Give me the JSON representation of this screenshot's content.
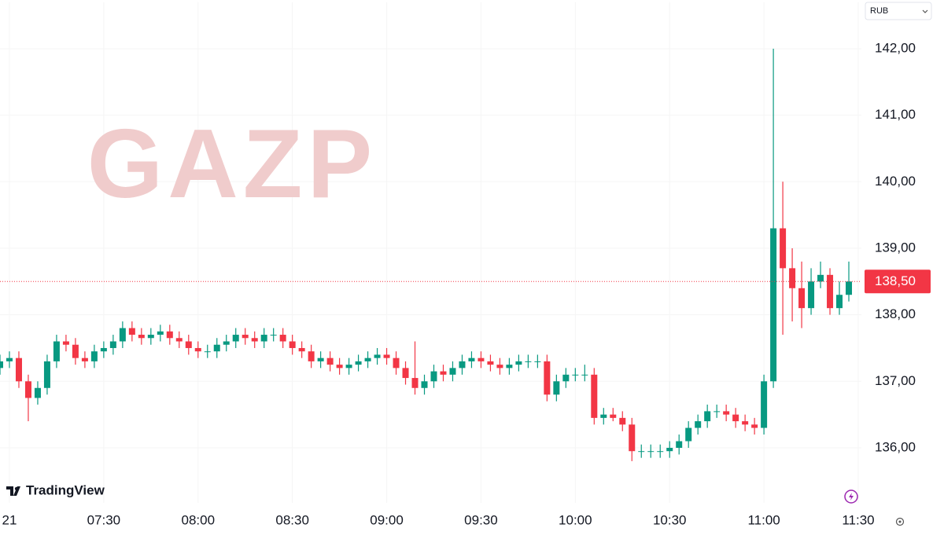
{
  "chart_data": {
    "type": "candlestick",
    "watermark": "GAZP",
    "currency": "RUB",
    "x": [
      417,
      420,
      423,
      426,
      429,
      432,
      435,
      438,
      441,
      444,
      447,
      450,
      453,
      456,
      459,
      462,
      465,
      468,
      471,
      474,
      477,
      480,
      483,
      486,
      489,
      492,
      495,
      498,
      501,
      504,
      507,
      510,
      513,
      516,
      519,
      522,
      525,
      528,
      531,
      534,
      537,
      540,
      543,
      546,
      549,
      552,
      555,
      558,
      561,
      564,
      567,
      570,
      573,
      576,
      579,
      582,
      585,
      588,
      591,
      594,
      597,
      600,
      603,
      606,
      609,
      612,
      615,
      618,
      621,
      624,
      627,
      630,
      633,
      636,
      639,
      642,
      645,
      648,
      651,
      654,
      657,
      660,
      663,
      666,
      669,
      672,
      675,
      678,
      681,
      684,
      687
    ],
    "open": [
      137.2,
      137.3,
      137.35,
      137.0,
      136.75,
      136.9,
      137.3,
      137.6,
      137.55,
      137.35,
      137.3,
      137.45,
      137.5,
      137.6,
      137.8,
      137.7,
      137.65,
      137.7,
      137.75,
      137.65,
      137.6,
      137.5,
      137.45,
      137.45,
      137.55,
      137.6,
      137.7,
      137.65,
      137.6,
      137.7,
      137.7,
      137.6,
      137.5,
      137.45,
      137.3,
      137.35,
      137.25,
      137.2,
      137.25,
      137.3,
      137.35,
      137.4,
      137.35,
      137.2,
      137.05,
      136.9,
      137.0,
      137.15,
      137.1,
      137.2,
      137.3,
      137.35,
      137.3,
      137.25,
      137.2,
      137.25,
      137.3,
      137.3,
      137.3,
      136.8,
      137.0,
      137.1,
      137.1,
      137.1,
      136.45,
      136.5,
      136.45,
      136.35,
      135.95,
      135.95,
      135.95,
      135.95,
      136.0,
      136.1,
      136.3,
      136.4,
      136.55,
      136.55,
      136.5,
      136.4,
      136.35,
      136.3,
      137.0,
      139.3,
      138.7,
      138.4,
      138.1,
      138.5,
      138.6,
      138.1,
      138.3
    ],
    "high": [
      137.4,
      137.45,
      137.45,
      137.1,
      137.0,
      137.4,
      137.7,
      137.7,
      137.65,
      137.45,
      137.55,
      137.6,
      137.7,
      137.9,
      137.9,
      137.8,
      137.8,
      137.85,
      137.85,
      137.75,
      137.7,
      137.6,
      137.55,
      137.65,
      137.7,
      137.8,
      137.8,
      137.75,
      137.8,
      137.8,
      137.8,
      137.7,
      137.6,
      137.55,
      137.45,
      137.45,
      137.35,
      137.35,
      137.4,
      137.45,
      137.5,
      137.5,
      137.45,
      137.3,
      137.6,
      137.1,
      137.25,
      137.25,
      137.3,
      137.4,
      137.45,
      137.45,
      137.4,
      137.35,
      137.35,
      137.4,
      137.4,
      137.4,
      137.4,
      137.1,
      137.2,
      137.2,
      137.25,
      137.2,
      136.6,
      136.6,
      136.55,
      136.45,
      136.05,
      136.05,
      136.05,
      136.1,
      136.2,
      136.4,
      136.5,
      136.65,
      136.65,
      136.65,
      136.6,
      136.5,
      136.45,
      137.1,
      142.0,
      140.0,
      139.0,
      138.8,
      138.7,
      138.8,
      138.7,
      138.5,
      138.8
    ],
    "low": [
      137.1,
      137.2,
      136.9,
      136.4,
      136.65,
      136.8,
      137.2,
      137.45,
      137.25,
      137.2,
      137.2,
      137.35,
      137.4,
      137.5,
      137.6,
      137.55,
      137.55,
      137.6,
      137.55,
      137.5,
      137.4,
      137.35,
      137.35,
      137.35,
      137.45,
      137.5,
      137.55,
      137.5,
      137.5,
      137.6,
      137.5,
      137.4,
      137.35,
      137.2,
      137.2,
      137.15,
      137.1,
      137.1,
      137.15,
      137.2,
      137.25,
      137.25,
      137.1,
      136.95,
      136.8,
      136.8,
      136.9,
      137.0,
      137.0,
      137.1,
      137.2,
      137.2,
      137.15,
      137.1,
      137.1,
      137.15,
      137.2,
      137.2,
      136.7,
      136.7,
      136.9,
      137.0,
      137.0,
      136.35,
      136.35,
      136.4,
      136.25,
      135.8,
      135.85,
      135.85,
      135.85,
      135.85,
      135.9,
      136.0,
      136.2,
      136.3,
      136.45,
      136.4,
      136.3,
      136.25,
      136.2,
      136.2,
      136.9,
      137.7,
      137.9,
      137.8,
      138.0,
      138.4,
      138.0,
      138.0,
      138.2
    ],
    "close": [
      137.3,
      137.35,
      137.0,
      136.75,
      136.9,
      137.3,
      137.6,
      137.55,
      137.35,
      137.3,
      137.45,
      137.5,
      137.6,
      137.8,
      137.7,
      137.65,
      137.7,
      137.75,
      137.65,
      137.6,
      137.5,
      137.45,
      137.45,
      137.55,
      137.6,
      137.7,
      137.65,
      137.6,
      137.7,
      137.7,
      137.6,
      137.5,
      137.45,
      137.3,
      137.35,
      137.25,
      137.2,
      137.25,
      137.3,
      137.35,
      137.4,
      137.35,
      137.2,
      137.05,
      136.9,
      137.0,
      137.15,
      137.1,
      137.2,
      137.3,
      137.35,
      137.3,
      137.25,
      137.2,
      137.25,
      137.3,
      137.3,
      137.3,
      136.8,
      137.0,
      137.1,
      137.1,
      137.1,
      136.45,
      136.5,
      136.45,
      136.35,
      135.95,
      135.95,
      135.95,
      135.95,
      136.0,
      136.1,
      136.3,
      136.4,
      136.55,
      136.55,
      136.5,
      136.4,
      136.35,
      136.3,
      137.0,
      139.3,
      138.7,
      138.4,
      138.1,
      138.5,
      138.6,
      138.1,
      138.3,
      138.5
    ],
    "up_color": "#089981",
    "down_color": "#f23645",
    "xlim": [
      417,
      691
    ],
    "xticks": [
      {
        "value": 420,
        "label": "21"
      },
      {
        "value": 450,
        "label": "07:30"
      },
      {
        "value": 480,
        "label": "08:00"
      },
      {
        "value": 510,
        "label": "08:30"
      },
      {
        "value": 540,
        "label": "09:00"
      },
      {
        "value": 570,
        "label": "09:30"
      },
      {
        "value": 600,
        "label": "10:00"
      },
      {
        "value": 630,
        "label": "10:30"
      },
      {
        "value": 660,
        "label": "11:00"
      },
      {
        "value": 690,
        "label": "11:30"
      }
    ],
    "ylim": [
      135.2,
      142.7
    ],
    "yticks": [
      {
        "value": 136,
        "label": "136,00"
      },
      {
        "value": 137,
        "label": "137,00"
      },
      {
        "value": 138,
        "label": "138,00"
      },
      {
        "value": 139,
        "label": "139,00"
      },
      {
        "value": 140,
        "label": "140,00"
      },
      {
        "value": 141,
        "label": "141,00"
      },
      {
        "value": 142,
        "label": "142,00"
      }
    ],
    "last_price": {
      "value": 138.5,
      "label": "138,50"
    }
  },
  "branding": "TradingView"
}
